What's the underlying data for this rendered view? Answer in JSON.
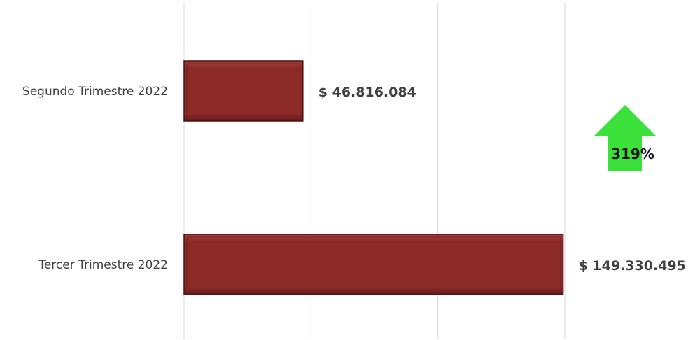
{
  "chart_data": {
    "type": "bar",
    "orientation": "horizontal",
    "categories": [
      "Segundo Trimestre 2022",
      "Tercer Trimestre 2022"
    ],
    "values": [
      46816084,
      149330495
    ],
    "data_labels": [
      "$ 46.816.084",
      "$ 149.330.495"
    ],
    "xlim": [
      0,
      150000000
    ],
    "grid": true,
    "bar_color": "#8B2A27",
    "annotation": {
      "text": "319%",
      "icon": "up-arrow-icon",
      "color": "#3BE03B"
    }
  }
}
